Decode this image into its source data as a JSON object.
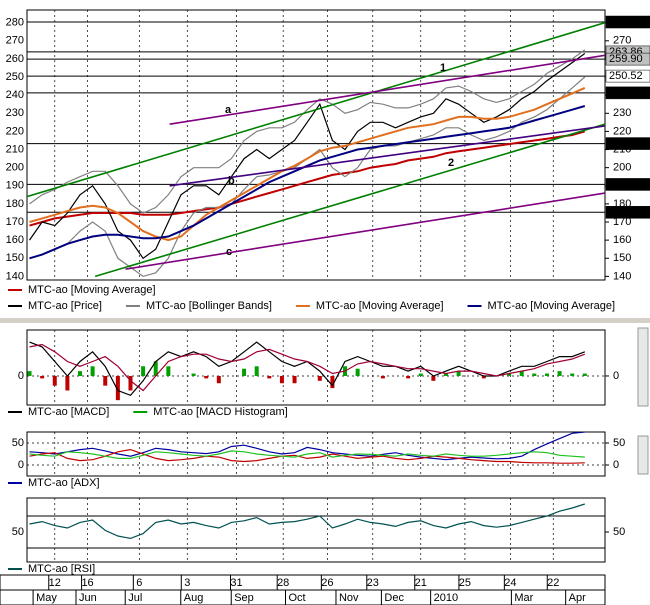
{
  "chart_data": [
    {
      "type": "line",
      "ylim": [
        138,
        287
      ],
      "yticks": [
        140,
        150,
        160,
        170,
        180,
        190,
        200,
        210,
        220,
        230,
        240,
        250,
        260,
        270,
        280
      ],
      "grid": "x",
      "series": [
        {
          "name": "MTC-ao [Moving Average]",
          "color": "#c00000",
          "values": [
            168,
            170,
            172,
            173,
            174,
            175,
            175,
            175,
            175,
            174,
            174,
            174,
            175,
            176,
            177,
            178,
            180,
            182,
            184,
            186,
            188,
            190,
            192,
            194,
            196,
            197,
            198,
            200,
            201,
            202,
            204,
            205,
            206,
            208,
            209,
            210,
            211,
            212,
            213,
            214,
            215,
            216,
            217,
            218,
            220
          ]
        },
        {
          "name": "MTC-ao [Price]",
          "color": "#000000",
          "values": [
            160,
            170,
            168,
            175,
            185,
            190,
            180,
            165,
            160,
            150,
            155,
            170,
            185,
            190,
            190,
            185,
            195,
            205,
            210,
            205,
            210,
            215,
            225,
            235,
            215,
            210,
            220,
            225,
            225,
            222,
            225,
            228,
            230,
            238,
            235,
            230,
            225,
            228,
            232,
            238,
            242,
            248,
            253,
            258,
            263
          ]
        },
        {
          "name": "MTC-ao [Bollinger Bands]",
          "color": "#808080",
          "values": [
            180,
            185,
            188,
            192,
            195,
            198,
            198,
            190,
            180,
            175,
            178,
            185,
            195,
            200,
            200,
            200,
            205,
            215,
            220,
            222,
            222,
            225,
            232,
            238,
            235,
            230,
            232,
            236,
            235,
            233,
            233,
            235,
            238,
            244,
            245,
            242,
            238,
            236,
            238,
            242,
            246,
            252,
            256,
            260,
            265
          ],
          "lower": [
            150,
            152,
            155,
            158,
            165,
            170,
            165,
            150,
            145,
            140,
            142,
            150,
            165,
            175,
            178,
            178,
            180,
            188,
            195,
            196,
            198,
            200,
            205,
            210,
            200,
            195,
            200,
            210,
            212,
            212,
            214,
            216,
            218,
            222,
            222,
            218,
            215,
            217,
            220,
            225,
            228,
            232,
            238,
            244,
            250
          ]
        },
        {
          "name": "MTC-ao [Moving Average]",
          "color": "#e07020",
          "values": [
            170,
            172,
            174,
            176,
            178,
            179,
            178,
            175,
            170,
            165,
            162,
            160,
            162,
            168,
            174,
            178,
            182,
            186,
            190,
            194,
            198,
            201,
            205,
            209,
            211,
            212,
            214,
            216,
            218,
            220,
            222,
            223,
            224,
            226,
            228,
            228,
            227,
            227,
            228,
            230,
            232,
            235,
            238,
            241,
            244
          ]
        },
        {
          "name": "MTC-ao [Moving Average]",
          "color": "#000080",
          "values": [
            150,
            152,
            155,
            158,
            160,
            162,
            163,
            163,
            162,
            161,
            161,
            162,
            165,
            168,
            172,
            176,
            180,
            184,
            188,
            192,
            195,
            198,
            201,
            204,
            206,
            208,
            210,
            211,
            212,
            213,
            214,
            215,
            216,
            217,
            218,
            219,
            220,
            221,
            222,
            224,
            226,
            228,
            230,
            232,
            234
          ]
        }
      ],
      "levels": [
        280.37,
        263.86,
        {
          "value": 259.9,
          "label": "259.90"
        },
        250.52,
        241.27,
        213.29,
        190.74,
        175.36
      ],
      "level_label_colors": [
        "#000000",
        "#c0c0c0",
        "#c0c0c0",
        "#ffffff",
        "#000000",
        "#000000",
        "#000000",
        "#000000"
      ],
      "trendlines": [
        {
          "color": "#008000",
          "points": [
            [
              -0.2,
              184
            ],
            [
              45.6,
              280
            ]
          ]
        },
        {
          "color": "#008000",
          "points": [
            [
              5.2,
              140
            ],
            [
              45.6,
              224
            ]
          ]
        },
        {
          "color": "#800080",
          "points": [
            [
              11.1,
              224
            ],
            [
              45.6,
              262
            ]
          ]
        },
        {
          "color": "#400080",
          "points": [
            [
              11.1,
              190
            ],
            [
              45.6,
              223
            ]
          ]
        },
        {
          "color": "#800080",
          "points": [
            [
              7.6,
              144
            ],
            [
              45.6,
              186
            ]
          ]
        }
      ],
      "annotations": [
        "a",
        "b",
        "c",
        "1",
        "2"
      ]
    },
    {
      "type": "line",
      "ylim": [
        -6,
        9.5
      ],
      "yticks": [
        0
      ],
      "grid": "both",
      "series": [
        {
          "name": "MTC-ao [MACD]",
          "color": "#000000",
          "values": [
            7,
            6,
            3,
            0,
            3,
            5,
            2,
            -3,
            -4,
            -1,
            3,
            5,
            4,
            5,
            4,
            2,
            3,
            5,
            7,
            5,
            3,
            2,
            3,
            1,
            -2,
            3,
            4,
            3,
            2,
            2,
            1,
            2,
            0,
            1,
            2,
            1,
            0,
            0,
            1,
            2,
            2,
            3,
            4,
            4,
            5
          ]
        },
        {
          "name": "MTC-ao [MACD Histogram]",
          "type": "bar",
          "color": "#00a000",
          "negative_color": "#c00000",
          "values": [
            1,
            -0.5,
            -2,
            -3,
            1,
            2,
            -2,
            -5,
            -3,
            2,
            3,
            2,
            0,
            0.5,
            -0.5,
            -1.5,
            0,
            1.5,
            2,
            -0.5,
            -1.5,
            -1.5,
            0,
            -1,
            -2.5,
            2,
            1.5,
            0,
            -0.5,
            0,
            -0.5,
            0.5,
            -1,
            0.5,
            1,
            0,
            -0.5,
            0,
            0.5,
            1,
            0.5,
            0.5,
            1,
            0.5,
            0.5
          ]
        },
        {
          "color": "#a00030",
          "values": [
            6,
            6.5,
            5,
            3,
            2,
            3,
            4,
            2,
            -1,
            -3,
            0,
            3,
            4,
            4.5,
            4.5,
            3.5,
            3,
            3.5,
            5,
            5.5,
            4.5,
            3.5,
            3,
            2,
            0.5,
            1,
            2.5,
            3,
            2.5,
            2,
            1.5,
            1.5,
            1,
            0.5,
            1,
            1,
            0.5,
            0,
            0.5,
            1,
            1.5,
            2.5,
            3,
            3.5,
            4.5
          ]
        }
      ]
    },
    {
      "type": "line",
      "ylim": [
        -25,
        75
      ],
      "yticks": [
        0,
        50
      ],
      "grid": "both",
      "series": [
        {
          "name": "MTC-ao [ADX]",
          "color": "#0000a0",
          "values": [
            30,
            28,
            25,
            30,
            35,
            38,
            32,
            25,
            20,
            28,
            38,
            35,
            30,
            28,
            26,
            30,
            42,
            45,
            38,
            30,
            25,
            28,
            40,
            35,
            28,
            25,
            22,
            20,
            24,
            28,
            22,
            18,
            15,
            12,
            15,
            18,
            16,
            14,
            15,
            20,
            35,
            48,
            60,
            72,
            75
          ]
        },
        {
          "color": "#c00000",
          "values": [
            20,
            25,
            28,
            15,
            10,
            12,
            20,
            30,
            35,
            25,
            15,
            10,
            12,
            15,
            20,
            18,
            10,
            8,
            10,
            15,
            20,
            22,
            15,
            18,
            25,
            20,
            15,
            18,
            20,
            15,
            12,
            15,
            20,
            18,
            15,
            12,
            10,
            8,
            8,
            6,
            5,
            5,
            4,
            4,
            5
          ]
        },
        {
          "color": "#20c020",
          "values": [
            25,
            22,
            20,
            30,
            28,
            25,
            20,
            15,
            15,
            22,
            30,
            28,
            25,
            22,
            20,
            25,
            32,
            30,
            25,
            22,
            20,
            18,
            25,
            28,
            18,
            22,
            25,
            24,
            22,
            20,
            25,
            22,
            20,
            25,
            22,
            20,
            20,
            22,
            25,
            28,
            30,
            28,
            22,
            20,
            18
          ]
        }
      ]
    },
    {
      "type": "line",
      "ylim": [
        12.5,
        92.5
      ],
      "yticks": [
        50
      ],
      "grid": "x",
      "levels": [
        30,
        70
      ],
      "series": [
        {
          "name": "MTC-ao [RSI]",
          "color": "#005050",
          "values": [
            60,
            63,
            58,
            55,
            62,
            65,
            52,
            45,
            42,
            48,
            62,
            65,
            60,
            62,
            58,
            55,
            62,
            64,
            68,
            60,
            62,
            63,
            66,
            70,
            55,
            60,
            66,
            62,
            60,
            57,
            62,
            64,
            58,
            55,
            60,
            63,
            58,
            56,
            58,
            62,
            66,
            70,
            76,
            80,
            85
          ]
        }
      ],
      "xlim": [
        -0.2,
        45.6
      ],
      "xticks": [
        {
          "value": 2.0,
          "label": "12"
        },
        {
          "value": 4.6,
          "label": "16"
        },
        {
          "value": 8.7,
          "label": "6"
        },
        {
          "value": 12.5,
          "label": "3"
        },
        {
          "value": 16.4,
          "label": "31"
        },
        {
          "value": 20.1,
          "label": "28"
        },
        {
          "value": 23.6,
          "label": "26"
        },
        {
          "value": 27.2,
          "label": "23"
        },
        {
          "value": 31.0,
          "label": "21"
        },
        {
          "value": 34.5,
          "label": "25"
        },
        {
          "value": 38.1,
          "label": "24"
        },
        {
          "value": 41.5,
          "label": "22"
        }
      ],
      "xticks_months": [
        {
          "value": 0.6,
          "label": "May"
        },
        {
          "value": 4.0,
          "label": "Jun"
        },
        {
          "value": 7.9,
          "label": "Jul"
        },
        {
          "value": 12.3,
          "label": "Aug"
        },
        {
          "value": 16.3,
          "label": "Sep"
        },
        {
          "value": 20.6,
          "label": "Oct"
        },
        {
          "value": 24.6,
          "label": "Nov"
        },
        {
          "value": 28.2,
          "label": "Dec"
        },
        {
          "value": 32.1,
          "label": "2010"
        },
        {
          "value": 38.5,
          "label": "Mar"
        },
        {
          "value": 42.8,
          "label": "Apr"
        }
      ]
    }
  ]
}
